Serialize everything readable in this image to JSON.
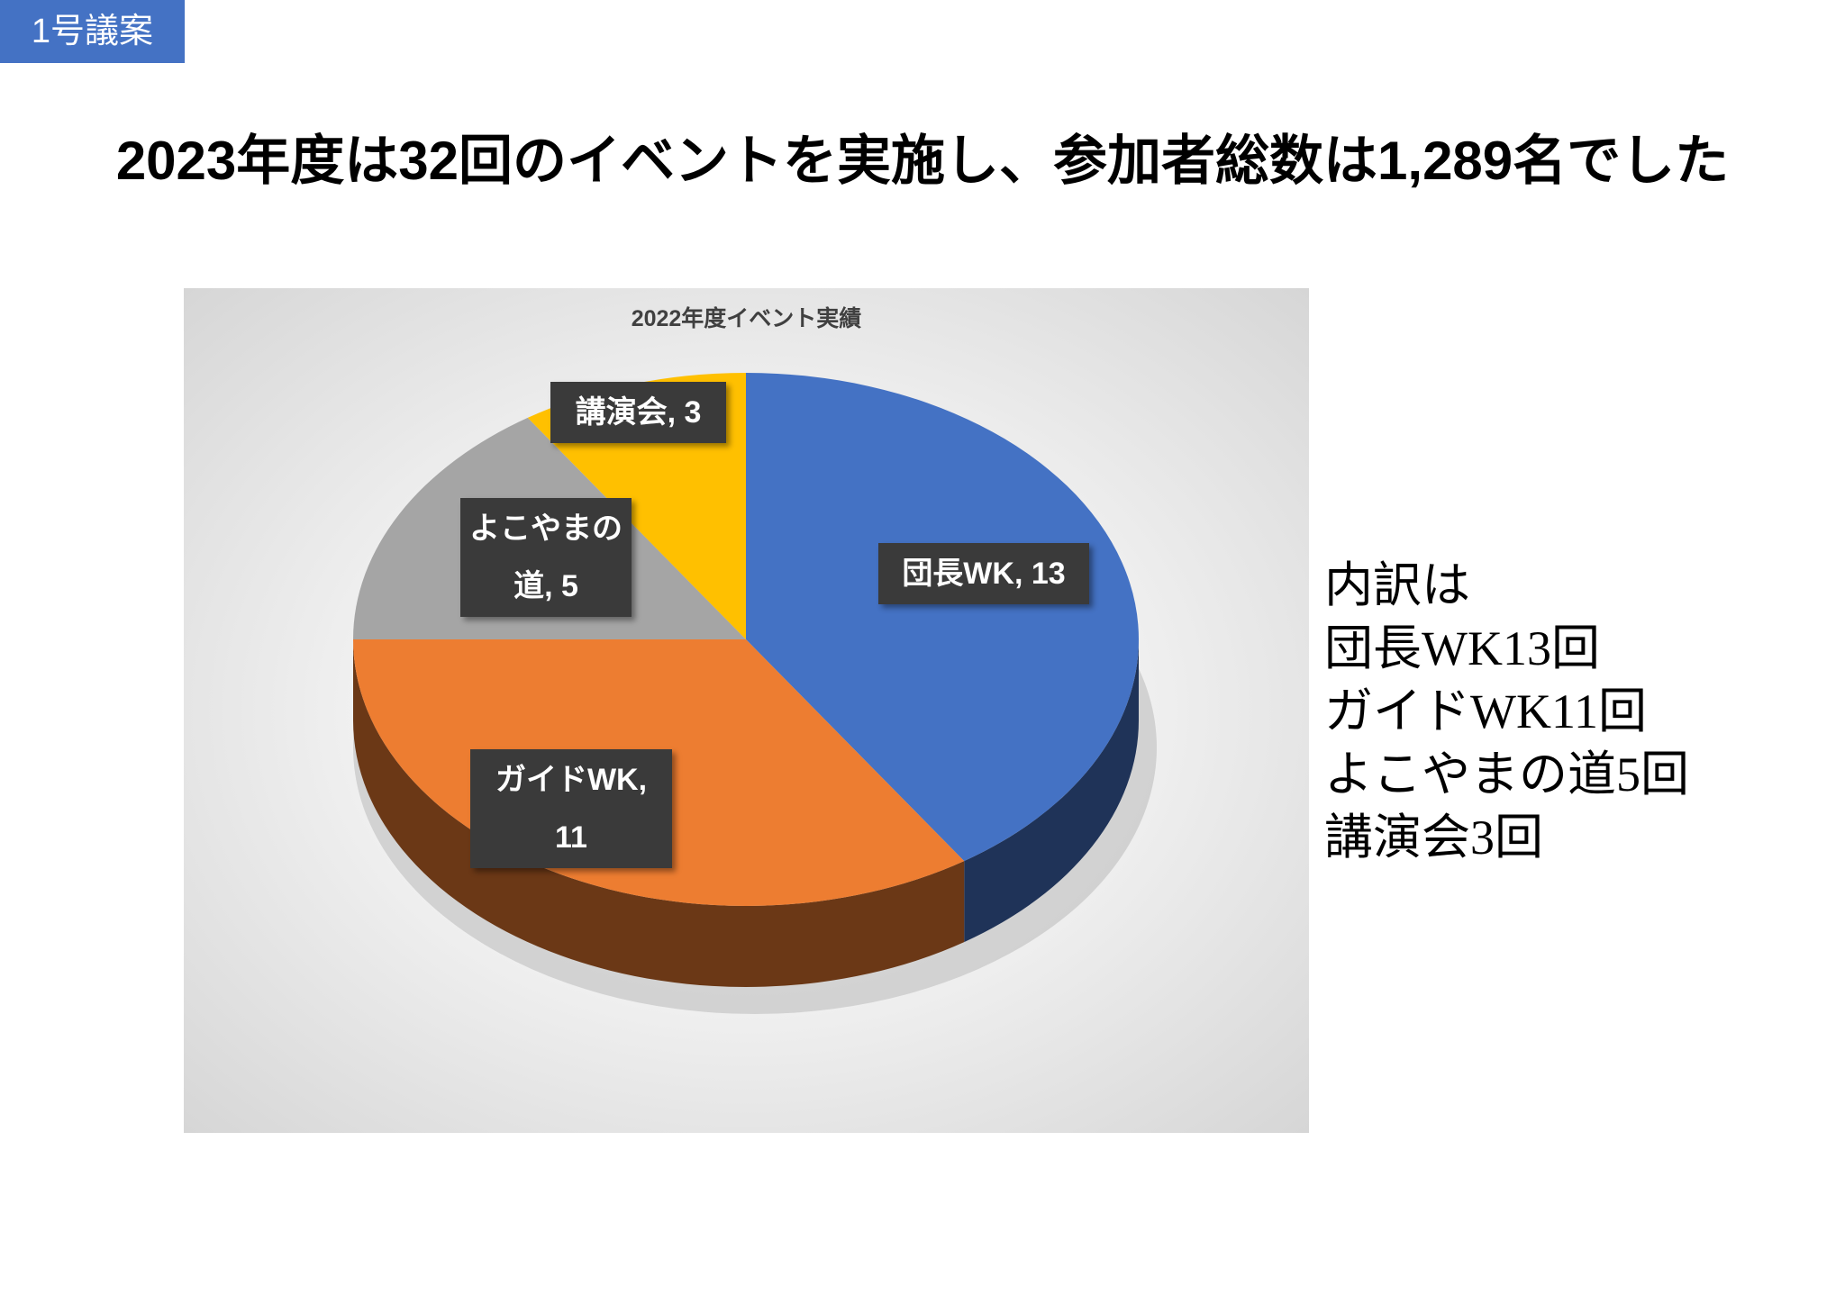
{
  "badge": "1号議案",
  "headline": "2023年度は32回のイベントを実施し、参加者総数は1,289名でした",
  "chart_data": {
    "type": "pie",
    "title": "2022年度イベント実績",
    "values": [
      13,
      11,
      5,
      3
    ],
    "value_labels": [
      "団長WK, 13",
      "ガイドWK, 11",
      "よこやまの道, 5",
      "講演会, 3"
    ],
    "colors": [
      "#4472c4",
      "#ed7d31",
      "#a5a5a5",
      "#ffc000"
    ]
  },
  "breakdown": [
    "内訳は",
    "団長WK13回",
    "ガイドWK11回",
    "よこやまの道5回",
    "講演会3回"
  ]
}
